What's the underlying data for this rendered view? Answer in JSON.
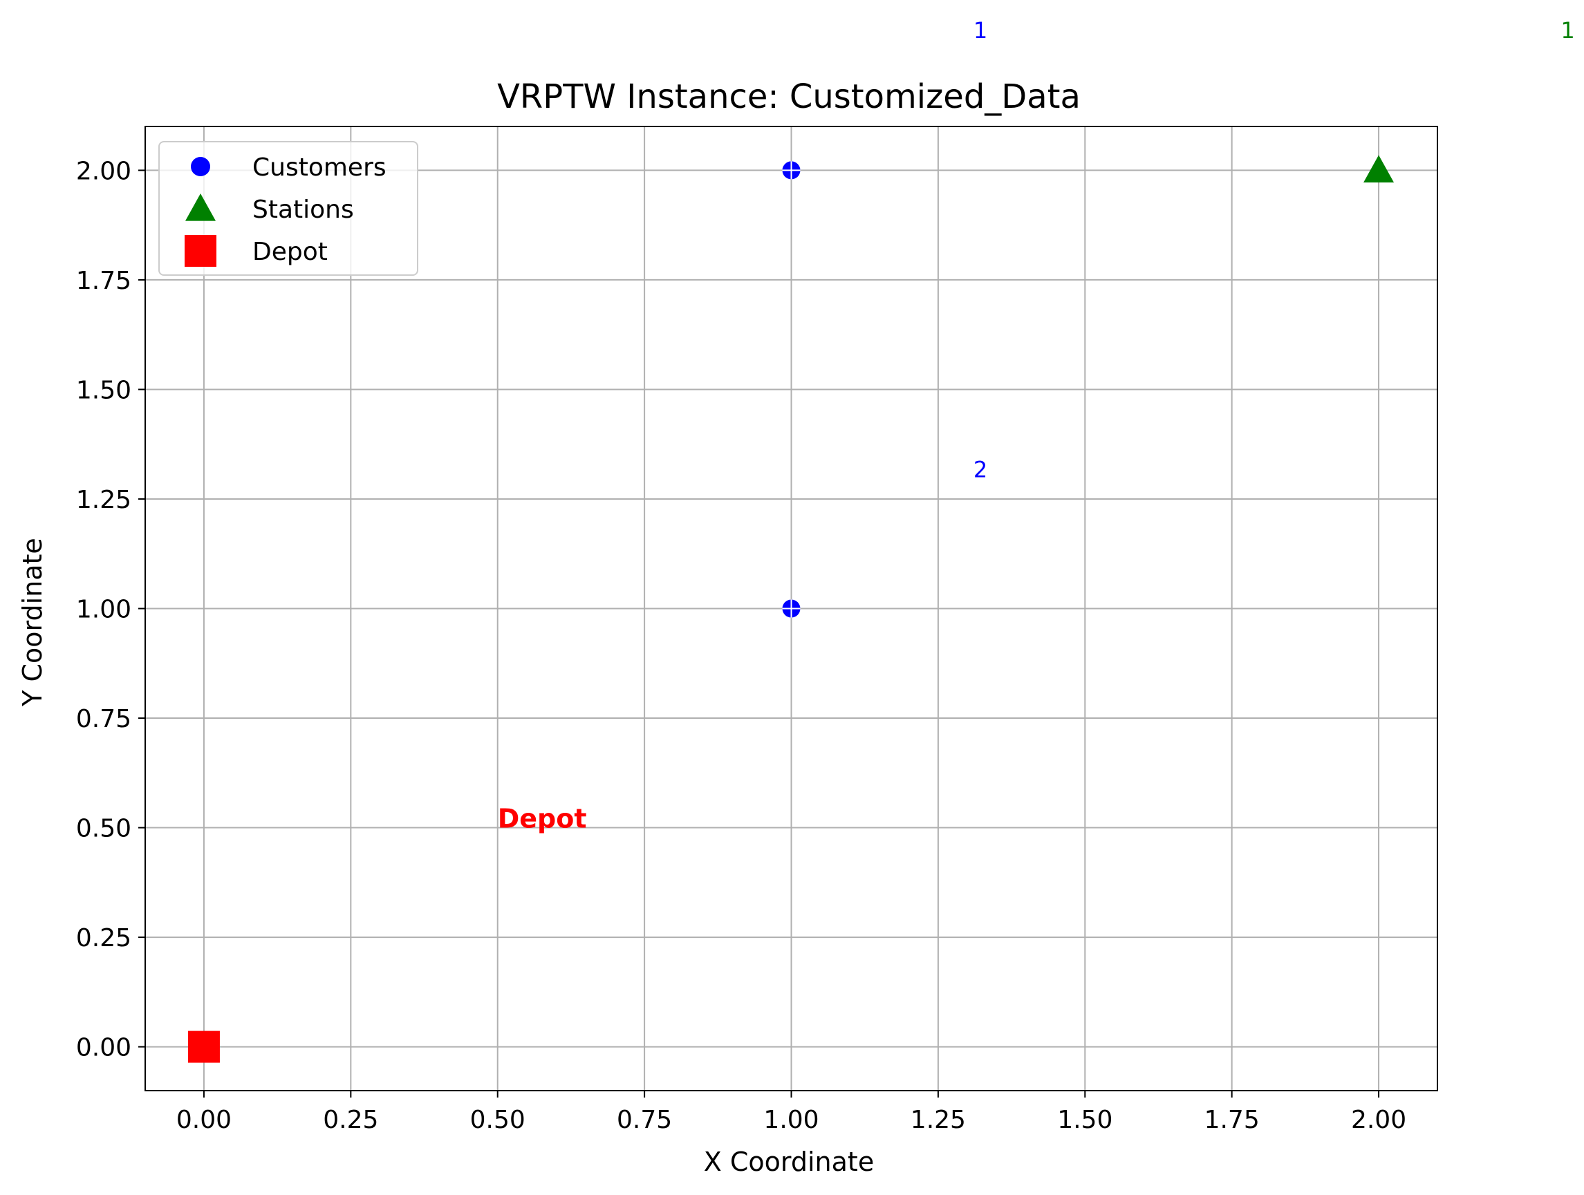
{
  "chart_data": {
    "type": "scatter",
    "title": "VRPTW Instance: Customized_Data",
    "xlabel": "X Coordinate",
    "ylabel": "Y Coordinate",
    "xlim": [
      -0.1,
      2.1
    ],
    "ylim": [
      -0.1,
      2.1
    ],
    "x_ticks": [
      0.0,
      0.25,
      0.5,
      0.75,
      1.0,
      1.25,
      1.5,
      1.75,
      2.0
    ],
    "y_ticks": [
      0.0,
      0.25,
      0.5,
      0.75,
      1.0,
      1.25,
      1.5,
      1.75,
      2.0
    ],
    "x_tick_labels": [
      "0.00",
      "0.25",
      "0.50",
      "0.75",
      "1.00",
      "1.25",
      "1.50",
      "1.75",
      "2.00"
    ],
    "y_tick_labels": [
      "0.00",
      "0.25",
      "0.50",
      "0.75",
      "1.00",
      "1.25",
      "1.50",
      "1.75",
      "2.00"
    ],
    "grid": true,
    "legend_position": "upper-left",
    "series": [
      {
        "name": "Customers",
        "marker": "circle",
        "color": "#0000ff",
        "points": [
          {
            "x": 1.0,
            "y": 2.0
          },
          {
            "x": 1.0,
            "y": 1.0
          }
        ]
      },
      {
        "name": "Stations",
        "marker": "triangle",
        "color": "#008000",
        "points": [
          {
            "x": 2.0,
            "y": 2.0
          }
        ]
      },
      {
        "name": "Depot",
        "marker": "square",
        "color": "#ff0000",
        "points": [
          {
            "x": 0.0,
            "y": 0.0
          }
        ]
      }
    ],
    "annotations": [
      {
        "text": "1",
        "x": 1.31,
        "y": 3.3,
        "color": "#0000ff",
        "bold": false
      },
      {
        "text": "1",
        "x": 2.31,
        "y": 3.3,
        "color": "#008000",
        "bold": false
      },
      {
        "text": "2",
        "x": 1.31,
        "y": 1.3,
        "color": "#0000ff",
        "bold": false
      },
      {
        "text": "Depot",
        "x": 0.5,
        "y": 0.5,
        "color": "#ff0000",
        "bold": true
      }
    ]
  }
}
